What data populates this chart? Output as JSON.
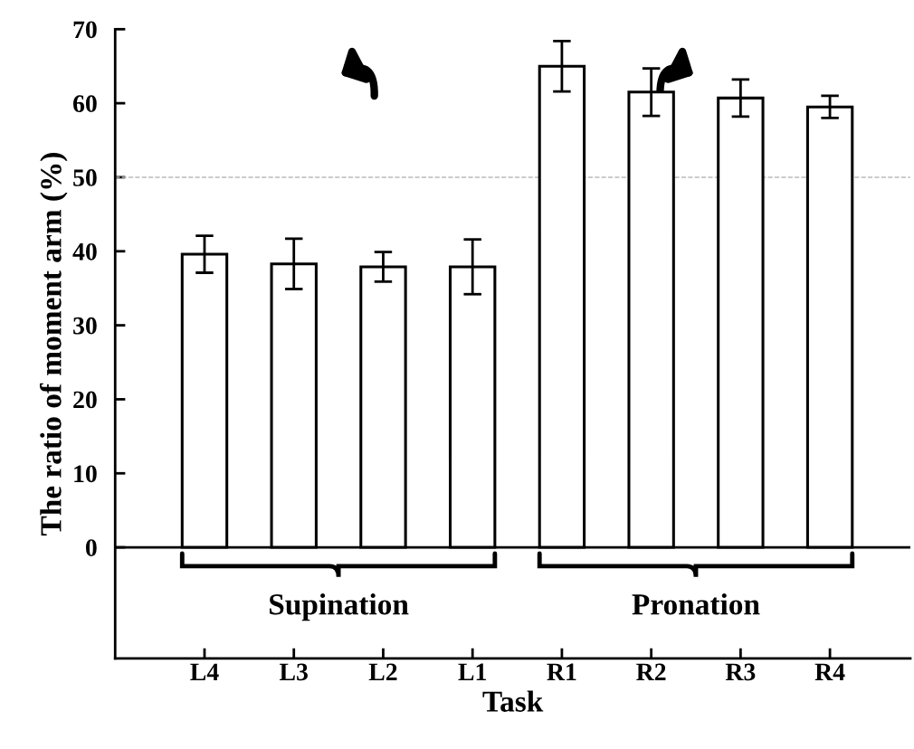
{
  "chart_data": {
    "type": "bar",
    "xlabel": "Task",
    "ylabel": "The ratio of moment arm (%)",
    "categories": [
      "L4",
      "L3",
      "L2",
      "L1",
      "R1",
      "R2",
      "R3",
      "R4"
    ],
    "values": [
      39.6,
      38.3,
      37.9,
      37.9,
      65.0,
      61.5,
      60.7,
      59.5
    ],
    "errors": [
      2.5,
      3.4,
      2.0,
      3.7,
      3.4,
      3.2,
      2.5,
      1.5
    ],
    "color": "#ffffff",
    "ylim": [
      -15,
      70
    ],
    "yticks": [
      0,
      10,
      20,
      30,
      40,
      50,
      60,
      70
    ],
    "ref_lines": [
      {
        "axis": "y",
        "value": 50,
        "color": "#bbbbbb",
        "line_style": "dashed"
      },
      {
        "axis": "y",
        "value": 0,
        "color": "#000000",
        "line_style": "solid"
      }
    ],
    "annotations": [
      "Supination",
      "Pronation"
    ],
    "grid": false
  }
}
